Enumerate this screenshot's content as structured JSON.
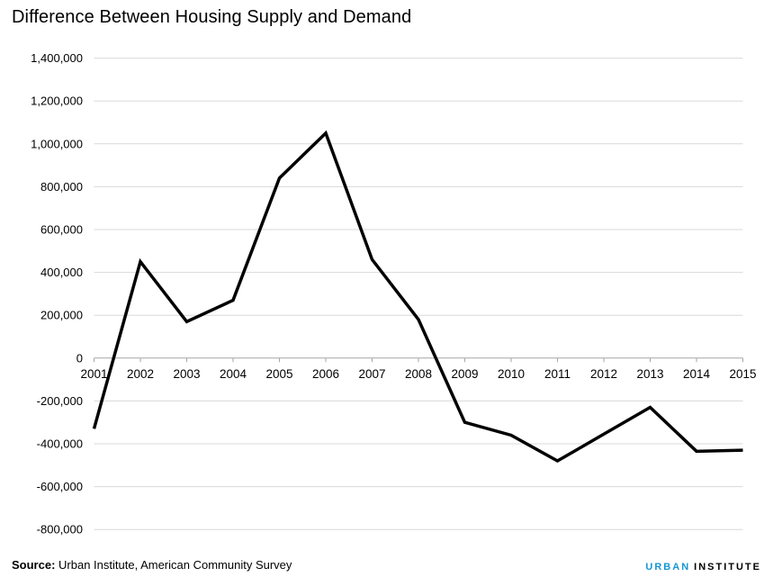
{
  "header": {
    "title": "Difference Between Housing Supply and Demand"
  },
  "chart_data": {
    "type": "line",
    "title": "Difference Between Housing Supply and Demand",
    "categories": [
      "2001",
      "2002",
      "2003",
      "2004",
      "2005",
      "2006",
      "2007",
      "2008",
      "2009",
      "2010",
      "2011",
      "2012",
      "2013",
      "2014",
      "2015"
    ],
    "series": [
      {
        "name": "Difference between housing supply and demand",
        "values": [
          -330000,
          450000,
          170000,
          270000,
          840000,
          1050000,
          460000,
          180000,
          -300000,
          -360000,
          -480000,
          -355000,
          -230000,
          -435000,
          -430000
        ]
      }
    ],
    "xlabel": "",
    "ylabel": "",
    "ylim": [
      -800000,
      1400000
    ],
    "ytick_step": 200000,
    "grid": true,
    "legend": "none",
    "line_color": "#000000",
    "grid_color": "#d9d9d9",
    "axis_color": "#a6a6a6",
    "label_color": "#000000"
  },
  "source": {
    "label": "Source:",
    "text": "Urban Institute, American Community Survey"
  },
  "logo": {
    "word1": "URBAN",
    "word2": "INSTITUTE",
    "accent_color": "#1696d2"
  }
}
